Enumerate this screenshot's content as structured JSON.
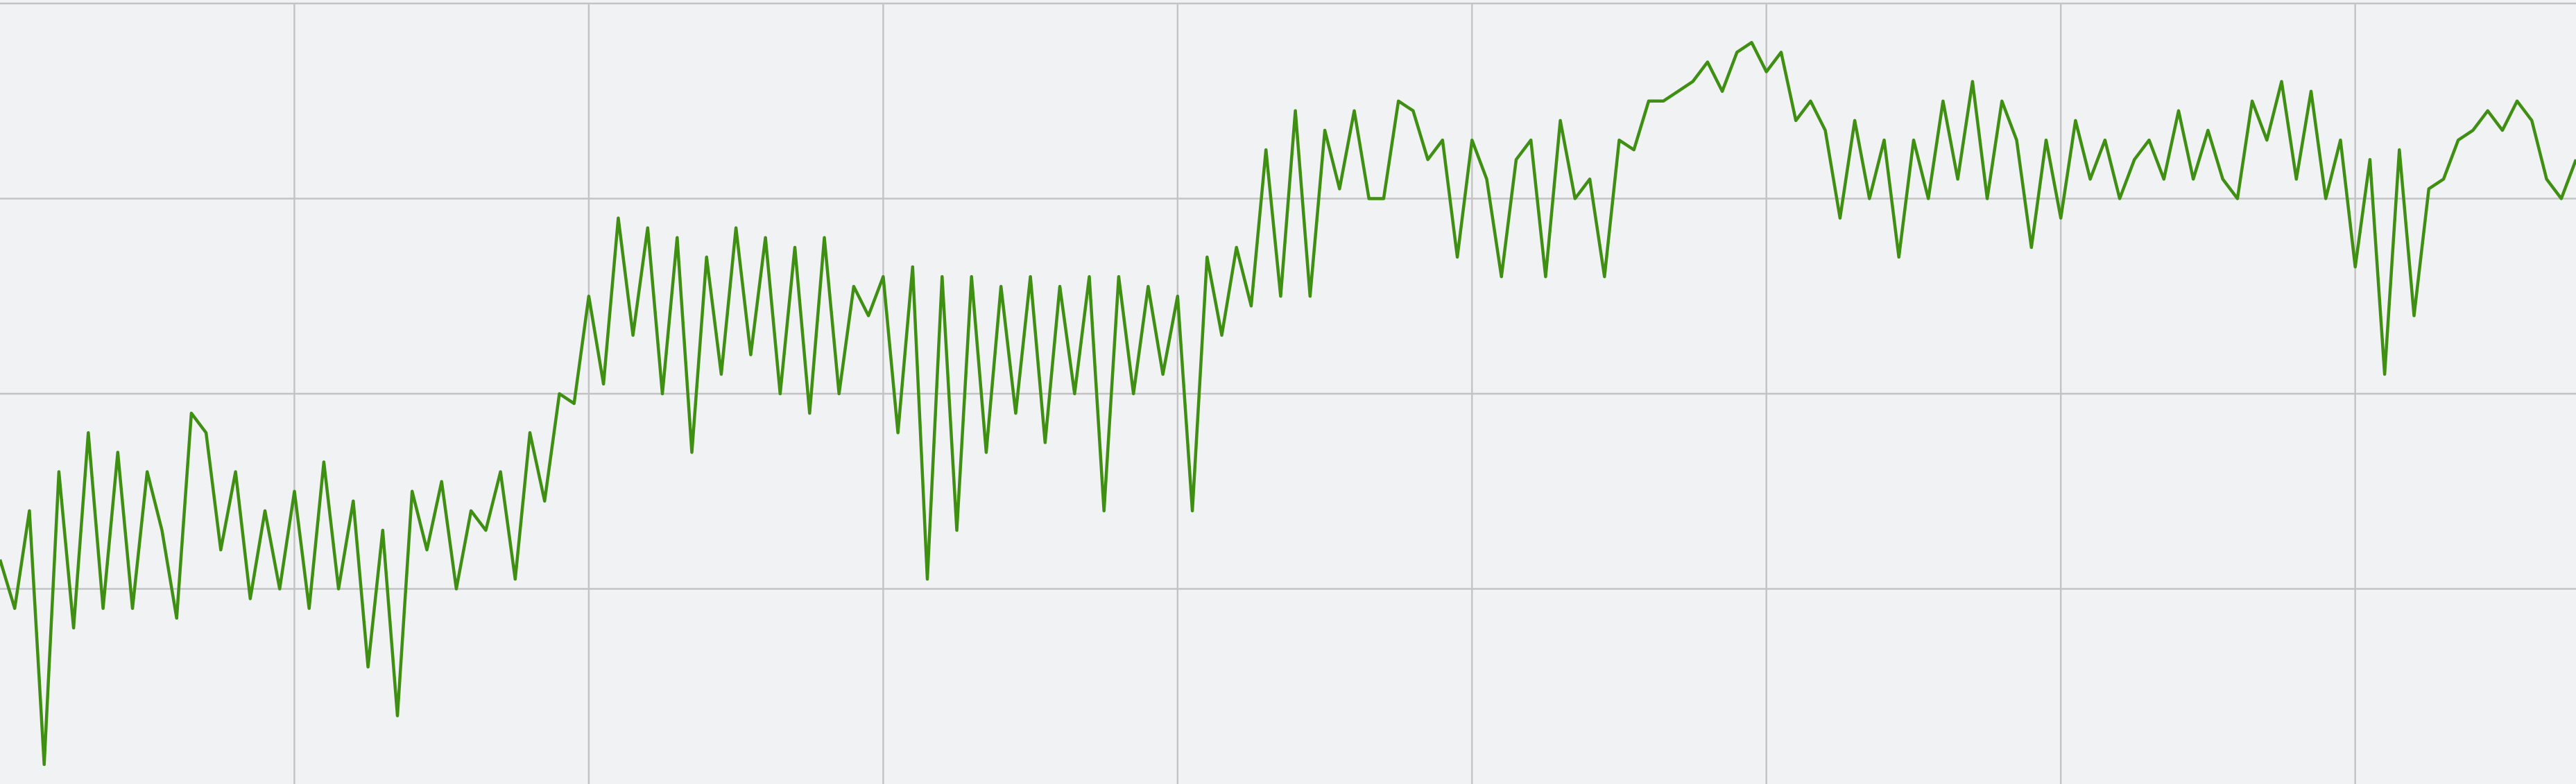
{
  "chart_data": {
    "type": "line",
    "color": "#3f8f12",
    "grid": true,
    "xlim": [
      0,
      8.75
    ],
    "xticks": [
      1,
      2,
      3,
      4,
      5,
      6,
      7,
      8
    ],
    "ylim": [
      0,
      4
    ],
    "yticks": [
      1,
      2,
      3,
      4
    ],
    "x": [
      0,
      0.05,
      0.1,
      0.15,
      0.2,
      0.25,
      0.3,
      0.35,
      0.4,
      0.45,
      0.5,
      0.55,
      0.6,
      0.65,
      0.7,
      0.75,
      0.8,
      0.85,
      0.9,
      0.95,
      1,
      1.05,
      1.1,
      1.15,
      1.2,
      1.25,
      1.3,
      1.35,
      1.4,
      1.45,
      1.5,
      1.55,
      1.6,
      1.65,
      1.7,
      1.75,
      1.8,
      1.85,
      1.9,
      1.95,
      2,
      2.05,
      2.1,
      2.15,
      2.2,
      2.25,
      2.3,
      2.35,
      2.4,
      2.45,
      2.5,
      2.55,
      2.6,
      2.65,
      2.7,
      2.75,
      2.8,
      2.85,
      2.9,
      2.95,
      3,
      3.05,
      3.1,
      3.15,
      3.2,
      3.25,
      3.3,
      3.35,
      3.4,
      3.45,
      3.5,
      3.55,
      3.6,
      3.65,
      3.7,
      3.75,
      3.8,
      3.85,
      3.9,
      3.95,
      4,
      4.05,
      4.1,
      4.15,
      4.2,
      4.25,
      4.3,
      4.35,
      4.4,
      4.45,
      4.5,
      4.55,
      4.6,
      4.65,
      4.7,
      4.75,
      4.8,
      4.85,
      4.9,
      4.95,
      5,
      5.05,
      5.1,
      5.15,
      5.2,
      5.25,
      5.3,
      5.35,
      5.4,
      5.45,
      5.5,
      5.55,
      5.6,
      5.65,
      5.7,
      5.75,
      5.8,
      5.85,
      5.9,
      5.95,
      6,
      6.05,
      6.1,
      6.15,
      6.2,
      6.25,
      6.3,
      6.35,
      6.4,
      6.45,
      6.5,
      6.55,
      6.6,
      6.65,
      6.7,
      6.75,
      6.8,
      6.85,
      6.9,
      6.95,
      7,
      7.05,
      7.1,
      7.15,
      7.2,
      7.25,
      7.3,
      7.35,
      7.4,
      7.45,
      7.5,
      7.55,
      7.6,
      7.65,
      7.7,
      7.75,
      7.8,
      7.85,
      7.9,
      7.95,
      8,
      8.05,
      8.1,
      8.15,
      8.2,
      8.25,
      8.3,
      8.35,
      8.4,
      8.45,
      8.5,
      8.55,
      8.6,
      8.65,
      8.7,
      8.75
    ],
    "values": [
      1.15,
      0.9,
      1.4,
      0.1,
      1.6,
      0.8,
      1.8,
      0.9,
      1.7,
      0.9,
      1.6,
      1.3,
      0.85,
      1.9,
      1.8,
      1.2,
      1.6,
      0.95,
      1.4,
      1.0,
      1.5,
      0.9,
      1.65,
      1.0,
      1.45,
      0.6,
      1.3,
      0.35,
      1.5,
      1.2,
      1.55,
      1.0,
      1.4,
      1.3,
      1.6,
      1.05,
      1.8,
      1.45,
      2.0,
      1.95,
      2.5,
      2.05,
      2.9,
      2.3,
      2.85,
      2.0,
      2.8,
      1.7,
      2.7,
      2.1,
      2.85,
      2.2,
      2.8,
      2.0,
      2.75,
      1.9,
      2.8,
      2.0,
      2.55,
      2.4,
      2.6,
      1.8,
      2.65,
      1.05,
      2.6,
      1.3,
      2.6,
      1.7,
      2.55,
      1.9,
      2.6,
      1.75,
      2.55,
      2.0,
      2.6,
      1.4,
      2.6,
      2.0,
      2.55,
      2.1,
      2.5,
      1.4,
      2.7,
      2.3,
      2.75,
      2.45,
      3.25,
      2.5,
      3.45,
      2.5,
      3.35,
      3.05,
      3.45,
      3.0,
      3.0,
      3.5,
      3.45,
      3.2,
      3.3,
      2.7,
      3.3,
      3.1,
      2.6,
      3.2,
      3.3,
      2.6,
      3.4,
      3.0,
      3.1,
      2.6,
      3.3,
      3.25,
      3.5,
      3.5,
      3.55,
      3.6,
      3.7,
      3.55,
      3.75,
      3.8,
      3.65,
      3.75,
      3.4,
      3.5,
      3.35,
      2.9,
      3.4,
      3.0,
      3.3,
      2.7,
      3.3,
      3.0,
      3.5,
      3.1,
      3.6,
      3.0,
      3.5,
      3.3,
      2.75,
      3.3,
      2.9,
      3.4,
      3.1,
      3.3,
      3.0,
      3.2,
      3.3,
      3.1,
      3.45,
      3.1,
      3.35,
      3.1,
      3.0,
      3.5,
      3.3,
      3.6,
      3.1,
      3.55,
      3.0,
      3.3,
      2.65,
      3.2,
      2.1,
      3.25,
      2.4,
      3.05,
      3.1,
      3.3,
      3.35,
      3.45,
      3.35,
      3.5,
      3.4,
      3.1,
      3.0,
      3.2
    ]
  }
}
